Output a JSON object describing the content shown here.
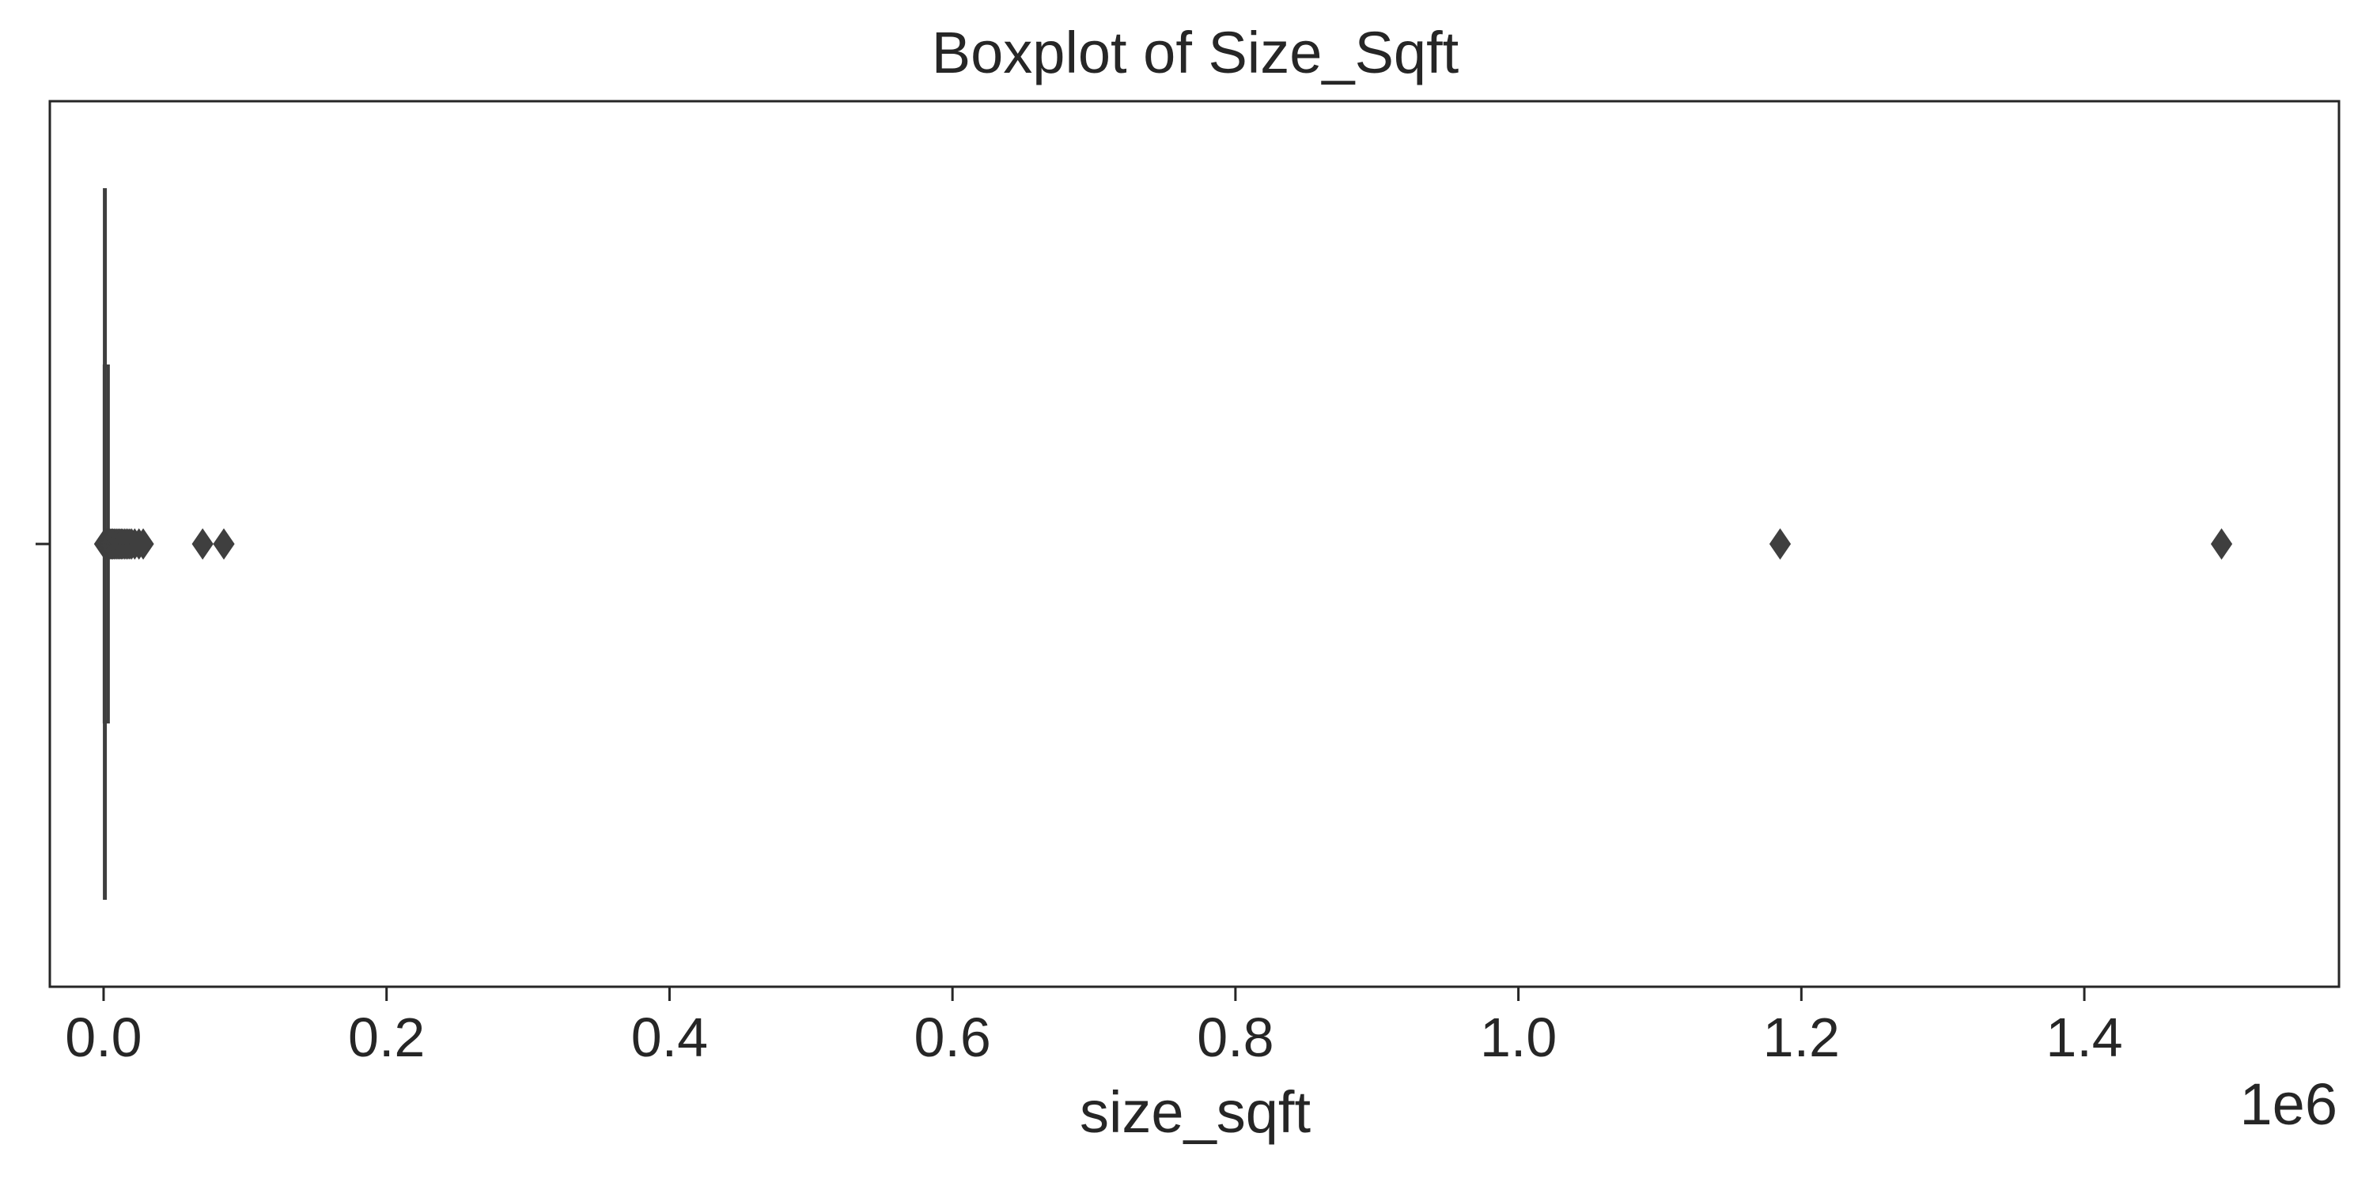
{
  "chart_data": {
    "type": "boxplot",
    "orientation": "horizontal",
    "title": "Boxplot of Size_Sqft",
    "xlabel": "size_sqft",
    "ylabel": "",
    "x_scale_label": "1e6",
    "x_multiplier": 1000000,
    "xlim": [
      -0.038,
      1.58
    ],
    "x_ticks": [
      0.0,
      0.2,
      0.4,
      0.6,
      0.8,
      1.0,
      1.2,
      1.4
    ],
    "x_tick_labels": [
      "0.0",
      "0.2",
      "0.4",
      "0.6",
      "0.8",
      "1.0",
      "1.2",
      "1.4"
    ],
    "grid": false,
    "legend": "none",
    "box": {
      "q1": 0.0005,
      "median": 0.0009,
      "q3": 0.0013,
      "whisker_low": 0.0,
      "whisker_high": 0.0026
    },
    "outliers": [
      0.0008,
      0.0015,
      0.002,
      0.0028,
      0.0035,
      0.0042,
      0.005,
      0.0058,
      0.0066,
      0.0075,
      0.0085,
      0.0095,
      0.0105,
      0.0115,
      0.0125,
      0.0135,
      0.0148,
      0.016,
      0.0172,
      0.0185,
      0.0198,
      0.022,
      0.025,
      0.028,
      0.07,
      0.085,
      1.185,
      1.497
    ],
    "colors": {
      "box_line": "#3f3f3f",
      "outlier": "#3f3f3f",
      "frame": "#262626"
    }
  }
}
